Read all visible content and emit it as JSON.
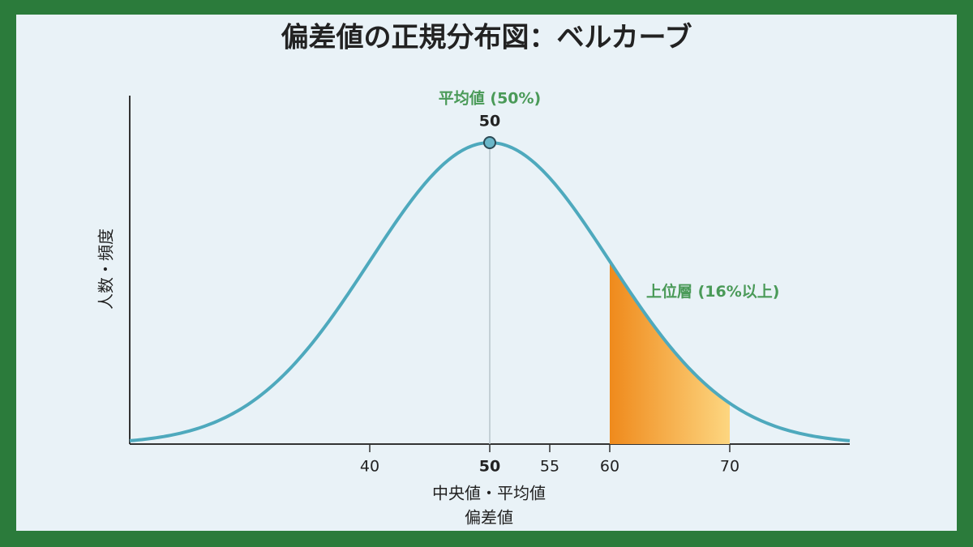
{
  "chart_data": {
    "type": "normal-curve",
    "title": "偏差値の正規分布図：ベルカーブ",
    "y_label": "人数・頻度",
    "x_label": [
      "中央値・平均値",
      "偏差値"
    ],
    "mean": 50,
    "sd": 10,
    "mean_annotation": "平均値 (50%)",
    "shade_range": [
      60,
      70
    ],
    "shade_annotation": "上位層 (16%以上)",
    "color": "#4ea9bd",
    "shade_colors": [
      "#ef8a1c",
      "#fdd680"
    ],
    "xlim": [
      20,
      80
    ],
    "xticks": [
      40,
      50,
      55,
      60,
      70
    ]
  }
}
